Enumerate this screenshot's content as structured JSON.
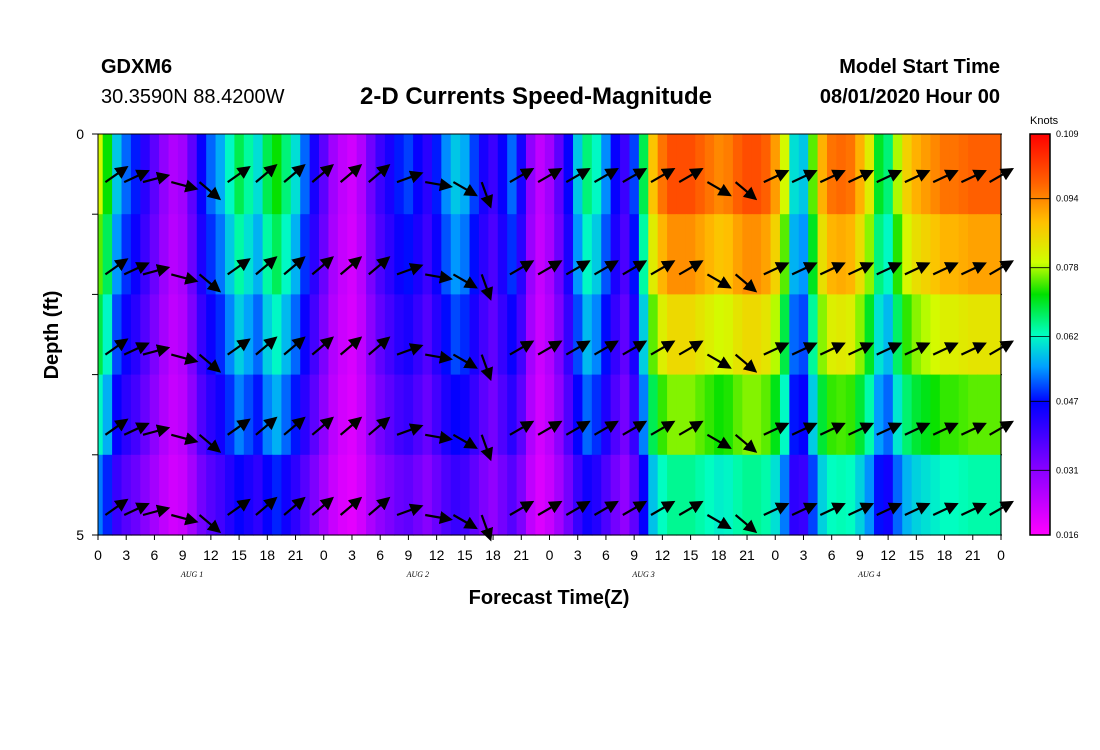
{
  "header": {
    "station_id": "GDXM6",
    "coordinates": "30.3590N 88.4200W",
    "title": "2-D Currents Speed-Magnitude",
    "model_start_label": "Model Start Time",
    "model_start_value": "08/01/2020 Hour 00"
  },
  "chart_data": {
    "type": "heatmap",
    "title": "2-D Currents Speed-Magnitude",
    "xlabel": "Forecast Time(Z)",
    "ylabel": "Depth (ft)",
    "x_hours": [
      0,
      3,
      6,
      9,
      12,
      15,
      18,
      21,
      24,
      27,
      30,
      33,
      36,
      39,
      42,
      45,
      48,
      51,
      54,
      57,
      60,
      63,
      66,
      69,
      72,
      75,
      78,
      81,
      84,
      87,
      90,
      93,
      96
    ],
    "x_tick_labels": [
      "0",
      "3",
      "6",
      "9",
      "12",
      "15",
      "18",
      "21",
      "0",
      "3",
      "6",
      "9",
      "12",
      "15",
      "18",
      "21",
      "0",
      "3",
      "6",
      "9",
      "12",
      "15",
      "18",
      "21",
      "0",
      "3",
      "6",
      "9",
      "12",
      "15",
      "18",
      "21",
      "0"
    ],
    "day_labels": [
      {
        "label": "AUG  1",
        "hour": 10
      },
      {
        "label": "AUG  2",
        "hour": 34
      },
      {
        "label": "AUG  3",
        "hour": 58
      },
      {
        "label": "AUG  4",
        "hour": 82
      }
    ],
    "xlim": [
      0,
      96
    ],
    "ylim": [
      0,
      5
    ],
    "y_ticks": [
      0,
      1,
      2,
      3,
      4,
      5
    ],
    "y_tick_labels": [
      "0",
      "",
      "",
      "",
      "",
      "5"
    ],
    "depth_levels": [
      0.5,
      1.5,
      2.5,
      3.5,
      4.5
    ],
    "speed_profile": {
      "hours": [
        0,
        1,
        2,
        3,
        4,
        5,
        6,
        7,
        8,
        9,
        10,
        11,
        12,
        13,
        14,
        15,
        16,
        17,
        18,
        19,
        20,
        21,
        22,
        23,
        24,
        25,
        26,
        27,
        28,
        29,
        30,
        31,
        32,
        33,
        34,
        35,
        36,
        37,
        38,
        39,
        40,
        41,
        42,
        43,
        44,
        45,
        46,
        47,
        48,
        49,
        50,
        51,
        52,
        53,
        54,
        55,
        56,
        57,
        58,
        59,
        60,
        61,
        62,
        63,
        64,
        65,
        66,
        67,
        68,
        69,
        70,
        71,
        72,
        73,
        74,
        75,
        76,
        77,
        78,
        79,
        80,
        81,
        82,
        83,
        84,
        85,
        86,
        87,
        88,
        89,
        90,
        91,
        92,
        93,
        94,
        95,
        96
      ],
      "speeds": [
        0.08,
        0.072,
        0.058,
        0.052,
        0.048,
        0.042,
        0.036,
        0.03,
        0.026,
        0.028,
        0.036,
        0.046,
        0.052,
        0.056,
        0.062,
        0.068,
        0.064,
        0.06,
        0.068,
        0.072,
        0.066,
        0.06,
        0.052,
        0.044,
        0.036,
        0.028,
        0.024,
        0.022,
        0.026,
        0.034,
        0.04,
        0.044,
        0.048,
        0.05,
        0.046,
        0.042,
        0.048,
        0.054,
        0.058,
        0.056,
        0.05,
        0.044,
        0.04,
        0.046,
        0.052,
        0.044,
        0.03,
        0.024,
        0.028,
        0.036,
        0.046,
        0.058,
        0.066,
        0.062,
        0.054,
        0.046,
        0.04,
        0.05,
        0.068,
        0.088,
        0.096,
        0.1,
        0.1,
        0.1,
        0.098,
        0.096,
        0.094,
        0.095,
        0.098,
        0.1,
        0.1,
        0.098,
        0.092,
        0.08,
        0.06,
        0.058,
        0.075,
        0.09,
        0.096,
        0.097,
        0.096,
        0.09,
        0.082,
        0.07,
        0.066,
        0.078,
        0.086,
        0.09,
        0.092,
        0.094,
        0.096,
        0.096,
        0.097,
        0.098,
        0.098,
        0.098,
        0.098
      ]
    },
    "depth_factors": [
      1.0,
      0.92,
      0.82,
      0.72,
      0.58
    ],
    "vectors": {
      "note": "direction in degrees (math convention, counter-clockwise from east), length in display units",
      "hours": [
        1,
        3,
        5,
        8,
        11,
        14,
        17,
        20,
        23,
        26,
        29,
        32,
        35,
        38,
        41,
        44,
        47,
        50,
        53,
        56,
        59,
        62,
        65,
        68,
        71,
        74,
        77,
        80,
        83,
        86,
        89,
        92,
        95
      ],
      "angles": [
        35,
        25,
        15,
        -15,
        -40,
        35,
        40,
        40,
        40,
        40,
        40,
        20,
        -10,
        -30,
        -70,
        30,
        30,
        30,
        30,
        30,
        30,
        30,
        -30,
        -40,
        25,
        25,
        25,
        25,
        25,
        25,
        25,
        25,
        30
      ]
    },
    "colorbar": {
      "title": "Knots",
      "min": 0.016,
      "max": 0.109,
      "tick_labels": [
        "0.109",
        "0.094",
        "0.078",
        "0.062",
        "0.047",
        "0.031",
        "0.016"
      ],
      "tick_values": [
        0.109,
        0.094,
        0.078,
        0.062,
        0.047,
        0.031,
        0.016
      ]
    }
  }
}
